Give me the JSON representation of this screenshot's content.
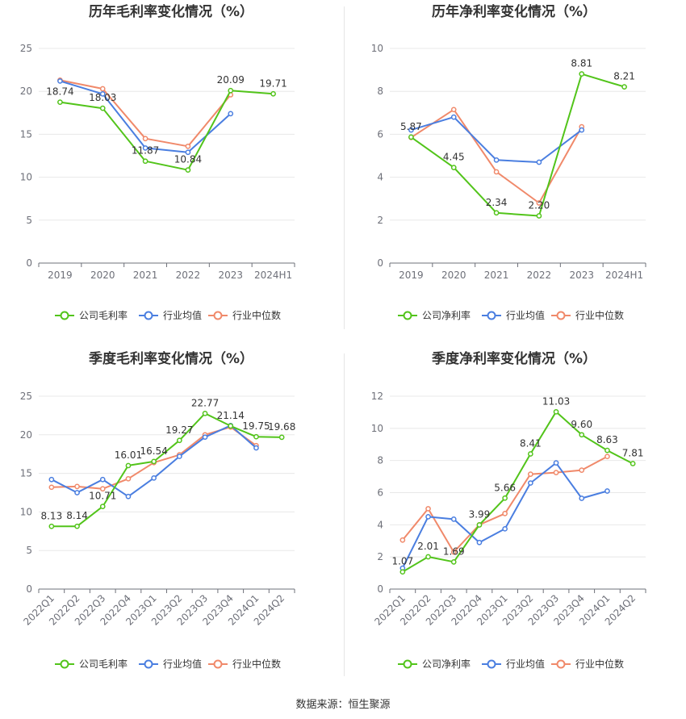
{
  "source_text": "数据来源：恒生聚源",
  "colors": {
    "company": "#52c41a",
    "avg": "#4a7ee0",
    "median": "#f0896a",
    "grid": "#e8e8e8",
    "axis": "#6e7079",
    "text": "#333333"
  },
  "chart_data": [
    {
      "type": "line",
      "title": "历年毛利率变化情况（%）",
      "categories": [
        "2019",
        "2020",
        "2021",
        "2022",
        "2023",
        "2024H1"
      ],
      "ylim": [
        0,
        25
      ],
      "yticks": [
        0,
        5,
        10,
        15,
        20,
        25
      ],
      "rotate_x": false,
      "legend": "bottom-center",
      "series": [
        {
          "name": "公司毛利率",
          "key": "company",
          "values": [
            18.74,
            18.03,
            11.87,
            10.84,
            20.09,
            19.71
          ],
          "labels": [
            "18.74",
            "18.03",
            "11.87",
            "10.84",
            "20.09",
            "19.71"
          ]
        },
        {
          "name": "行业均值",
          "key": "avg",
          "values": [
            21.2,
            19.7,
            13.4,
            12.9,
            17.4,
            null
          ]
        },
        {
          "name": "行业中位数",
          "key": "median",
          "values": [
            21.3,
            20.3,
            14.5,
            13.6,
            19.6,
            null
          ]
        }
      ]
    },
    {
      "type": "line",
      "title": "历年净利率变化情况（%）",
      "categories": [
        "2019",
        "2020",
        "2021",
        "2022",
        "2023",
        "2024H1"
      ],
      "ylim": [
        0,
        10
      ],
      "yticks": [
        0,
        2,
        4,
        6,
        8,
        10
      ],
      "rotate_x": false,
      "legend": "bottom-center",
      "series": [
        {
          "name": "公司净利率",
          "key": "company",
          "values": [
            5.87,
            4.45,
            2.34,
            2.2,
            8.81,
            8.21
          ],
          "labels": [
            "5.87",
            "4.45",
            "2.34",
            "2.20",
            "8.81",
            "8.21"
          ]
        },
        {
          "name": "行业均值",
          "key": "avg",
          "values": [
            6.2,
            6.8,
            4.8,
            4.7,
            6.2,
            null
          ]
        },
        {
          "name": "行业中位数",
          "key": "median",
          "values": [
            5.85,
            7.15,
            4.25,
            2.8,
            6.35,
            null
          ]
        }
      ]
    },
    {
      "type": "line",
      "title": "季度毛利率变化情况（%）",
      "categories": [
        "2022Q1",
        "2022Q2",
        "2022Q3",
        "2022Q4",
        "2023Q1",
        "2023Q2",
        "2023Q3",
        "2023Q4",
        "2024Q1",
        "2024Q2"
      ],
      "ylim": [
        0,
        25
      ],
      "yticks": [
        0,
        5,
        10,
        15,
        20,
        25
      ],
      "rotate_x": true,
      "legend": "bottom-center",
      "series": [
        {
          "name": "公司毛利率",
          "key": "company",
          "values": [
            8.13,
            8.14,
            10.71,
            16.01,
            16.54,
            19.27,
            22.77,
            21.14,
            19.75,
            19.68
          ],
          "labels": [
            "8.13",
            "8.14",
            "10.71",
            "16.01",
            "16.54",
            "19.27",
            "22.77",
            "21.14",
            "19.75",
            "19.68"
          ]
        },
        {
          "name": "行业均值",
          "key": "avg",
          "values": [
            14.2,
            12.5,
            14.2,
            12.0,
            14.4,
            17.2,
            19.7,
            21.2,
            18.3,
            null
          ]
        },
        {
          "name": "行业中位数",
          "key": "median",
          "values": [
            13.2,
            13.3,
            13.0,
            14.3,
            16.4,
            17.4,
            20.0,
            21.0,
            18.6,
            null
          ]
        }
      ]
    },
    {
      "type": "line",
      "title": "季度净利率变化情况（%）",
      "categories": [
        "2022Q1",
        "2022Q2",
        "2022Q3",
        "2022Q4",
        "2023Q1",
        "2023Q2",
        "2023Q3",
        "2023Q4",
        "2024Q1",
        "2024Q2"
      ],
      "ylim": [
        0,
        12
      ],
      "yticks": [
        0,
        2,
        4,
        6,
        8,
        10,
        12
      ],
      "rotate_x": true,
      "legend": "bottom-center",
      "series": [
        {
          "name": "公司净利率",
          "key": "company",
          "values": [
            1.07,
            2.01,
            1.69,
            3.99,
            5.66,
            8.41,
            11.03,
            9.6,
            8.63,
            7.81
          ],
          "labels": [
            "1.07",
            "2.01",
            "1.69",
            "3.99",
            "5.66",
            "8.41",
            "11.03",
            "9.60",
            "8.63",
            "7.81"
          ]
        },
        {
          "name": "行业均值",
          "key": "avg",
          "values": [
            1.3,
            4.5,
            4.35,
            2.9,
            3.75,
            6.6,
            7.85,
            5.65,
            6.1,
            null
          ]
        },
        {
          "name": "行业中位数",
          "key": "median",
          "values": [
            3.05,
            5.0,
            2.3,
            4.0,
            4.7,
            7.15,
            7.25,
            7.4,
            8.25,
            null
          ]
        }
      ]
    }
  ]
}
